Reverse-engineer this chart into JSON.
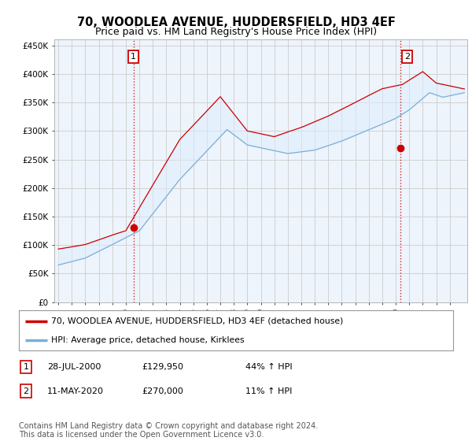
{
  "title": "70, WOODLEA AVENUE, HUDDERSFIELD, HD3 4EF",
  "subtitle": "Price paid vs. HM Land Registry's House Price Index (HPI)",
  "ylabel_ticks": [
    "£0",
    "£50K",
    "£100K",
    "£150K",
    "£200K",
    "£250K",
    "£300K",
    "£350K",
    "£400K",
    "£450K"
  ],
  "ytick_values": [
    0,
    50000,
    100000,
    150000,
    200000,
    250000,
    300000,
    350000,
    400000,
    450000
  ],
  "ylim": [
    0,
    460000
  ],
  "xlim_start": 1994.7,
  "xlim_end": 2025.3,
  "sale1_date": 2000.57,
  "sale1_price": 129950,
  "sale1_label": "1",
  "sale2_date": 2020.36,
  "sale2_price": 270000,
  "sale2_label": "2",
  "legend_line1": "70, WOODLEA AVENUE, HUDDERSFIELD, HD3 4EF (detached house)",
  "legend_line2": "HPI: Average price, detached house, Kirklees",
  "footer": "Contains HM Land Registry data © Crown copyright and database right 2024.\nThis data is licensed under the Open Government Licence v3.0.",
  "line_color_red": "#cc0000",
  "line_color_blue": "#7bafd4",
  "fill_color_blue": "#ddeeff",
  "vline_color": "#cc0000",
  "background_color": "#ffffff",
  "plot_bg_color": "#eef4fb",
  "grid_color": "#cccccc",
  "title_fontsize": 10.5,
  "subtitle_fontsize": 9,
  "tick_fontsize": 7.5,
  "footer_fontsize": 7
}
